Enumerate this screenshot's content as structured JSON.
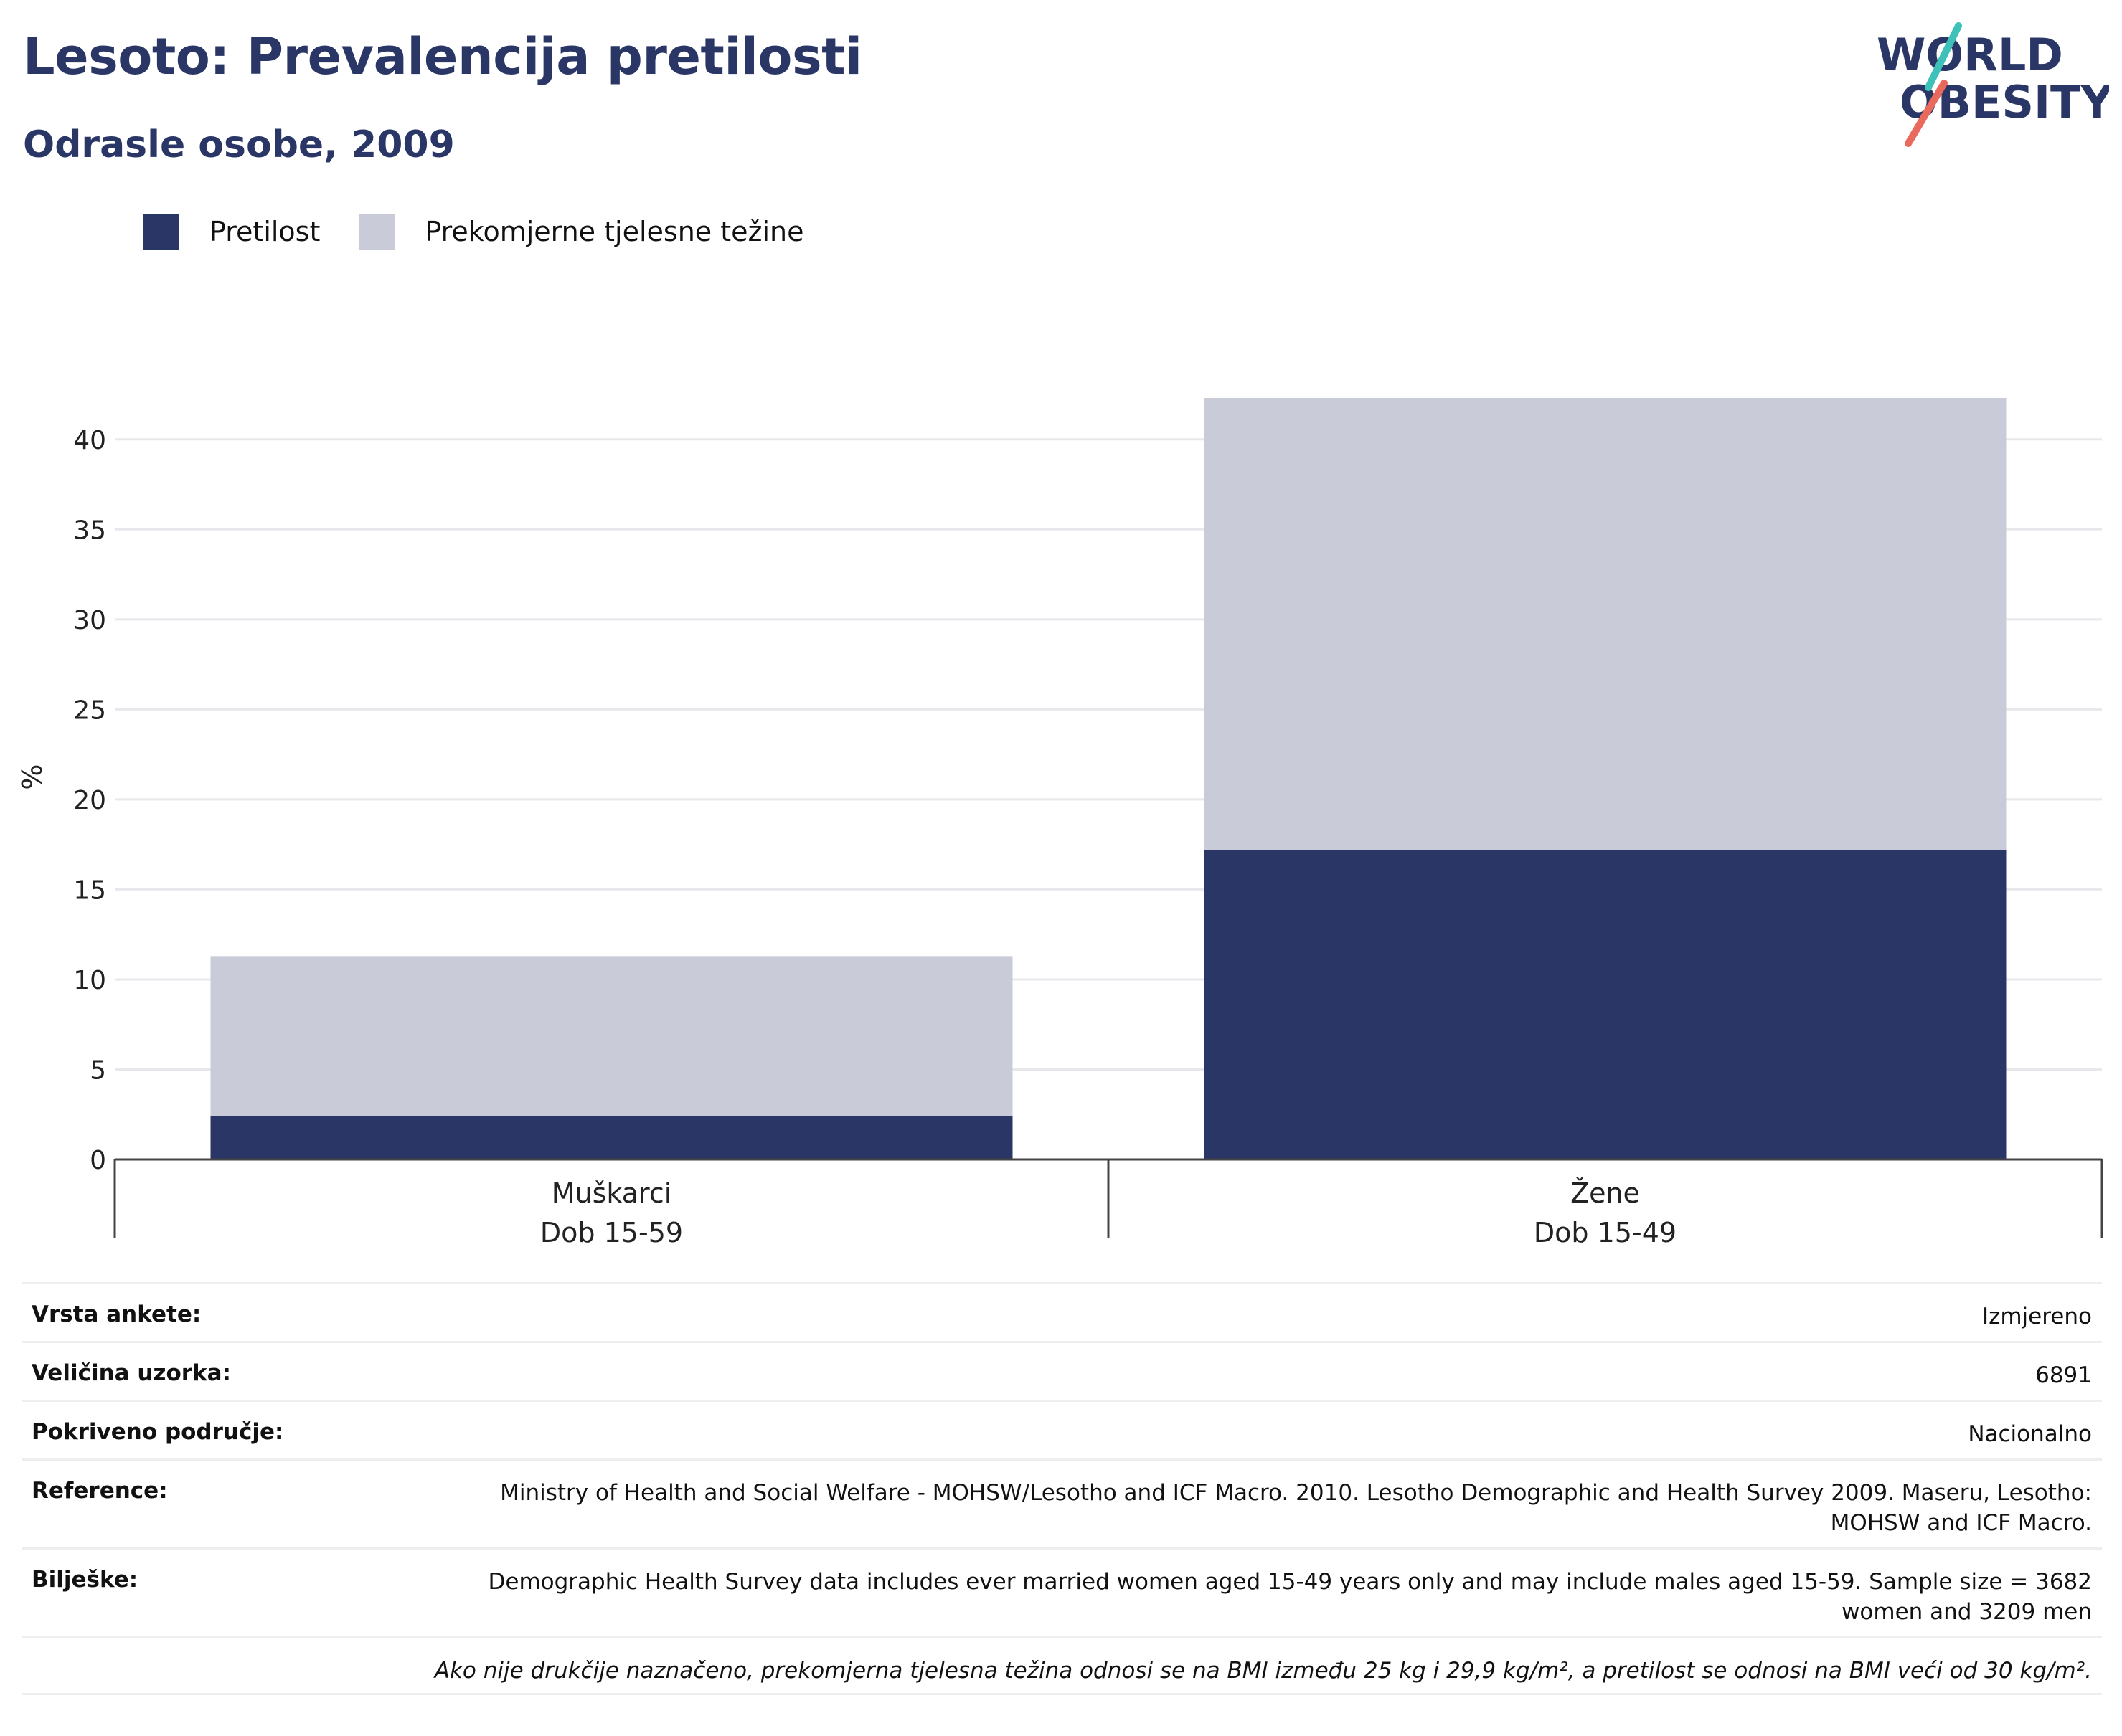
{
  "header": {
    "title": "Lesoto: Prevalencija pretilosti",
    "subtitle": "Odrasle osobe, 2009"
  },
  "logo": {
    "line1": "WORLD",
    "line2": "OBESITY",
    "colors": {
      "navy": "#2a3766",
      "teal": "#3ec1b9",
      "coral": "#e96a5d"
    }
  },
  "legend": [
    {
      "label": "Pretilost",
      "color": "#2a3766"
    },
    {
      "label": "Prekomjerne tjelesne težine",
      "color": "#c9ccd8"
    }
  ],
  "chart_data": {
    "type": "bar",
    "stacked": true,
    "categories": [
      {
        "line1": "Muškarci",
        "line2": "Dob 15-59"
      },
      {
        "line1": "Žene",
        "line2": "Dob 15-49"
      }
    ],
    "series": [
      {
        "name": "Pretilost",
        "values": [
          2.4,
          17.2
        ],
        "color": "#2a3766"
      },
      {
        "name": "Prekomjerne tjelesne težine",
        "values": [
          8.9,
          25.1
        ],
        "color": "#c9ccd8"
      }
    ],
    "ylabel": "%",
    "ylim": [
      0,
      42.5
    ],
    "yticks": [
      0,
      5,
      10,
      15,
      20,
      25,
      30,
      35,
      40
    ],
    "grid": true,
    "legend_position": "top-left"
  },
  "info": {
    "survey_type": {
      "label": "Vrsta ankete:",
      "value": "Izmjereno"
    },
    "sample_size": {
      "label": "Veličina uzorka:",
      "value": "6891"
    },
    "coverage": {
      "label": "Pokriveno područje:",
      "value": "Nacionalno"
    },
    "reference": {
      "label": "Reference:",
      "value": "Ministry of Health and Social Welfare - MOHSW/Lesotho and ICF Macro. 2010. Lesotho Demographic and Health Survey 2009. Maseru, Lesotho: MOHSW and ICF Macro."
    },
    "notes": {
      "label": "Bilješke:",
      "value": "Demographic Health Survey data includes ever married women aged 15-49 years only and may include males aged 15-59. Sample size = 3682 women and 3209 men"
    },
    "footnote": "Ako nije drukčije naznačeno, prekomjerna tjelesna težina odnosi se na BMI između 25 kg i 29,9 kg/m², a pretilost se odnosi na BMI veći od 30 kg/m²."
  }
}
